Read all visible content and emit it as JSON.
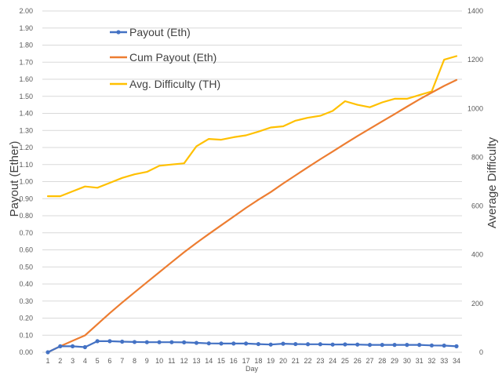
{
  "chart_data": {
    "type": "line",
    "xlabel": "Day",
    "ylabel_left": "Payout (Ether)",
    "ylabel_right": "Average Difficulty",
    "ylim_left": [
      0,
      2.0
    ],
    "ylim_right": [
      0,
      1400
    ],
    "x": [
      1,
      2,
      3,
      4,
      5,
      6,
      7,
      8,
      9,
      10,
      11,
      12,
      13,
      14,
      15,
      16,
      17,
      18,
      19,
      20,
      21,
      22,
      23,
      24,
      25,
      26,
      27,
      28,
      29,
      30,
      31,
      32,
      33,
      34
    ],
    "y_ticks_left": [
      "0.00",
      "0.10",
      "0.20",
      "0.30",
      "0.40",
      "0.50",
      "0.60",
      "0.70",
      "0.80",
      "0.90",
      "1.00",
      "1.10",
      "1.20",
      "1.30",
      "1.40",
      "1.50",
      "1.60",
      "1.70",
      "1.80",
      "1.90",
      "2.00"
    ],
    "y_ticks_right": [
      "0",
      "200",
      "400",
      "600",
      "800",
      "1000",
      "1200",
      "1400"
    ],
    "grid": "horizontal",
    "legend_position": "top-left",
    "series": [
      {
        "name": "Payout (Eth)",
        "axis": "left",
        "color": "#4472C4",
        "markers": true,
        "values": [
          0.0,
          0.035,
          0.035,
          0.03,
          0.065,
          0.065,
          0.062,
          0.06,
          0.059,
          0.059,
          0.059,
          0.058,
          0.055,
          0.052,
          0.051,
          0.051,
          0.051,
          0.048,
          0.045,
          0.05,
          0.048,
          0.047,
          0.047,
          0.045,
          0.046,
          0.045,
          0.043,
          0.043,
          0.043,
          0.043,
          0.043,
          0.04,
          0.039,
          0.035
        ]
      },
      {
        "name": "Cum Payout (Eth)",
        "axis": "left",
        "color": "#ED7D31",
        "markers": false,
        "values": [
          0.0,
          0.035,
          0.067,
          0.099,
          0.164,
          0.229,
          0.291,
          0.351,
          0.41,
          0.469,
          0.528,
          0.586,
          0.641,
          0.693,
          0.744,
          0.795,
          0.846,
          0.894,
          0.939,
          0.989,
          1.037,
          1.084,
          1.131,
          1.176,
          1.222,
          1.267,
          1.31,
          1.353,
          1.396,
          1.439,
          1.482,
          1.522,
          1.561,
          1.596
        ]
      },
      {
        "name": "Avg. Difficulty (TH)",
        "axis": "right",
        "color": "#FFC000",
        "markers": false,
        "values": [
          640,
          640,
          660,
          680,
          675,
          695,
          715,
          730,
          740,
          765,
          770,
          775,
          845,
          875,
          872,
          882,
          890,
          905,
          922,
          927,
          950,
          962,
          970,
          990,
          1030,
          1015,
          1005,
          1025,
          1040,
          1040,
          1055,
          1070,
          1200,
          1215
        ]
      }
    ]
  }
}
